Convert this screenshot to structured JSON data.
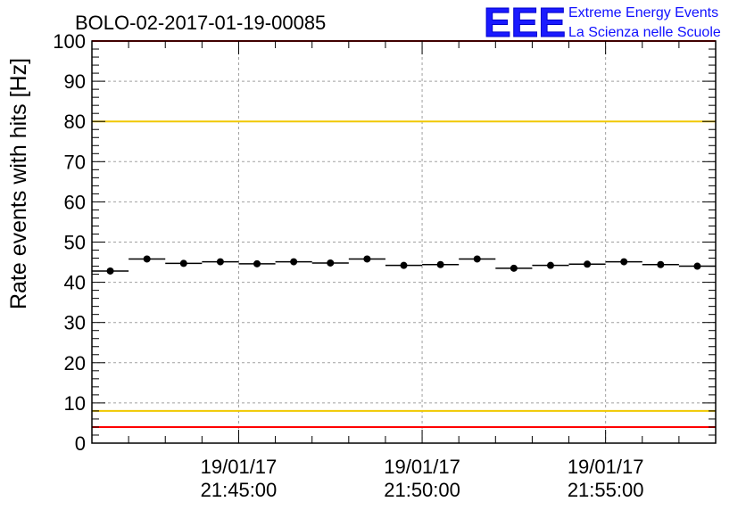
{
  "header": {
    "run_title": "BOLO-02-2017-01-19-00085",
    "logo_text": "EEE",
    "logo_line1": "Extreme Energy Events",
    "logo_line2": "La Scienza nelle Scuole",
    "logo_color": "#1a1aff"
  },
  "chart_data": {
    "type": "scatter",
    "title": "BOLO-02-2017-01-19-00085",
    "xlabel": "",
    "ylabel": "Rate events with hits [Hz]",
    "ylim": [
      0,
      100
    ],
    "xlim": [
      "2017-01-19 21:41:00",
      "2017-01-19 21:58:00"
    ],
    "x_tick_labels": [
      {
        "date": "19/01/17",
        "time": "21:45:00"
      },
      {
        "date": "19/01/17",
        "time": "21:50:00"
      },
      {
        "date": "19/01/17",
        "time": "21:55:00"
      }
    ],
    "y_tick_labels": [
      "0",
      "10",
      "20",
      "30",
      "40",
      "50",
      "60",
      "70",
      "80",
      "90",
      "100"
    ],
    "grid": true,
    "bin_width_minutes": 1,
    "points": [
      {
        "x": "21:41:30",
        "y": 42.8
      },
      {
        "x": "21:42:30",
        "y": 45.8
      },
      {
        "x": "21:43:30",
        "y": 44.7
      },
      {
        "x": "21:44:30",
        "y": 45.1
      },
      {
        "x": "21:45:30",
        "y": 44.6
      },
      {
        "x": "21:46:30",
        "y": 45.1
      },
      {
        "x": "21:47:30",
        "y": 44.8
      },
      {
        "x": "21:48:30",
        "y": 45.8
      },
      {
        "x": "21:49:30",
        "y": 44.2
      },
      {
        "x": "21:50:30",
        "y": 44.4
      },
      {
        "x": "21:51:30",
        "y": 45.8
      },
      {
        "x": "21:52:30",
        "y": 43.5
      },
      {
        "x": "21:53:30",
        "y": 44.2
      },
      {
        "x": "21:54:30",
        "y": 44.5
      },
      {
        "x": "21:55:30",
        "y": 45.1
      },
      {
        "x": "21:56:30",
        "y": 44.4
      },
      {
        "x": "21:57:30",
        "y": 44.0
      }
    ],
    "reference_lines": [
      {
        "y": 100,
        "color": "#ff0000"
      },
      {
        "y": 80,
        "color": "#f0c800"
      },
      {
        "y": 8,
        "color": "#f0c800"
      },
      {
        "y": 4,
        "color": "#ff0000"
      }
    ]
  }
}
